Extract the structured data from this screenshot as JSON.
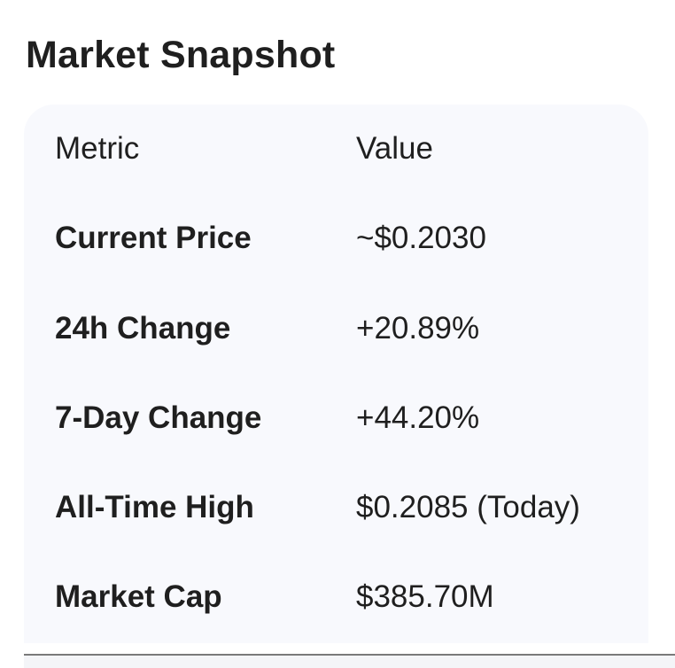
{
  "heading": "Market Snapshot",
  "table": {
    "header": {
      "metric": "Metric",
      "value": "Value"
    },
    "rows": [
      {
        "metric": "Current Price",
        "value": "~$0.2030"
      },
      {
        "metric": "24h Change",
        "value": "+20.89%"
      },
      {
        "metric": "7-Day Change",
        "value": "+44.20%"
      },
      {
        "metric": "All-Time High",
        "value": "$0.2085 (Today)"
      },
      {
        "metric": "Market Cap",
        "value": "$385.70M"
      }
    ]
  },
  "colors": {
    "text": "#1f1f1f",
    "card_background": "#f8f9fd",
    "page_background": "#ffffff"
  }
}
